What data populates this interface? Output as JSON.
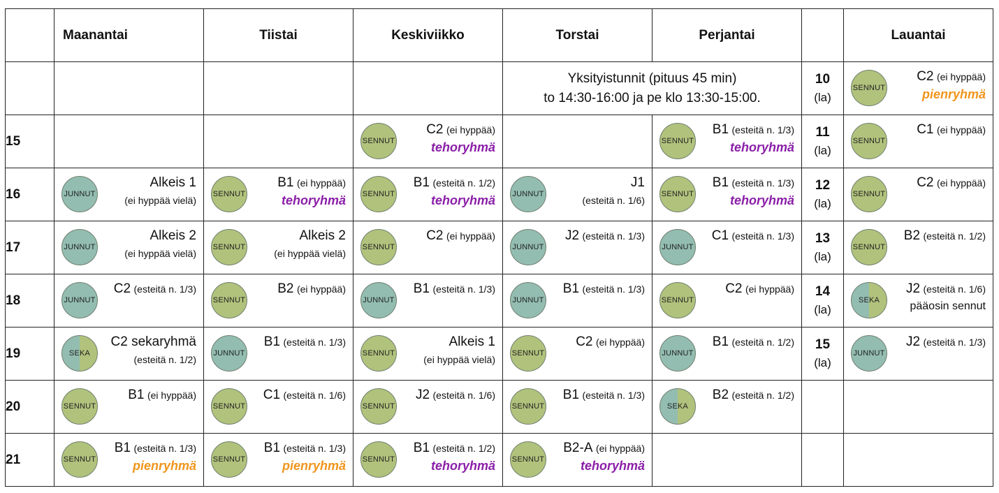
{
  "headers": {
    "mon": "Maanantai",
    "tue": "Tiistai",
    "wed": "Keskiviikko",
    "thu": "Torstai",
    "fri": "Perjantai",
    "sat": "Lauantai"
  },
  "notice": {
    "line1": "Yksityistunnit (pituus 45 min)",
    "line2": "to 14:30-16:00 ja pe klo 13:30-15:00."
  },
  "badges": {
    "sennut": "SENNUT",
    "junnut": "JUNNUT",
    "seka": "SEKA"
  },
  "tags": {
    "teho": "tehoryhmä",
    "pien": "pienryhmä"
  },
  "notes": {
    "ei_hyppaa": "(ei hyppää)",
    "ei_hyppaa_viela": "(ei hyppää vielä)",
    "esteita_1_2": "(esteitä n. 1/2)",
    "esteita_1_3": "(esteitä n. 1/3)",
    "esteita_1_6": "(esteitä n. 1/6)",
    "esteita_1_6_paren": "(esteitä n. 1/6)",
    "paaosin_sennut": "pääosin sennut"
  },
  "times": [
    "15",
    "16",
    "17",
    "18",
    "19",
    "20",
    "21"
  ],
  "saturday_times": [
    {
      "num": "10",
      "suffix": "(la)"
    },
    {
      "num": "11",
      "suffix": "(la)"
    },
    {
      "num": "12",
      "suffix": "(la)"
    },
    {
      "num": "13",
      "suffix": "(la)"
    },
    {
      "num": "14",
      "suffix": "(la)"
    },
    {
      "num": "15",
      "suffix": "(la)"
    }
  ],
  "levels": {
    "alkeis1": "Alkeis 1",
    "alkeis2": "Alkeis 2",
    "b1": "B1",
    "b2": "B2",
    "b2a": "B2-A",
    "c1": "C1",
    "c2": "C2",
    "c2_seka": "C2 sekaryhmä",
    "j1": "J1",
    "j2": "J2"
  }
}
